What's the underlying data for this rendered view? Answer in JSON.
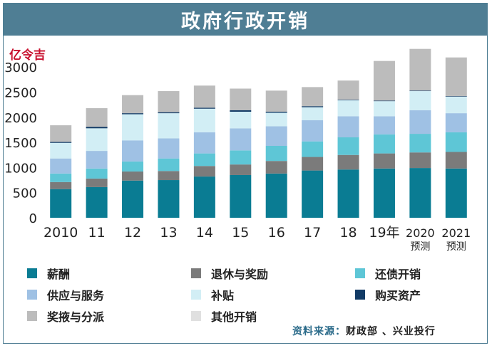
{
  "header": {
    "title": "政府行政开销"
  },
  "unit": "亿令吉",
  "source": {
    "label": "资料来源：",
    "value": "财政部 、兴业投行"
  },
  "colors": {
    "salaries": "#0a7c93",
    "pensions": "#7b7b7b",
    "debt": "#5ec6d6",
    "supplies": "#9fc1e4",
    "subsidies": "#d2eef5",
    "assets": "#123b66",
    "grants": "#bcbcbc",
    "others": "#e0e0e0"
  },
  "chart_data": {
    "type": "bar",
    "stacked": true,
    "categories": [
      "2010",
      "11",
      "12",
      "13",
      "14",
      "15",
      "16",
      "17",
      "18",
      "19年",
      "2020\n预测",
      "2021\n预测"
    ],
    "ylim": [
      0,
      3200
    ],
    "yticks": [
      0,
      500,
      1000,
      1500,
      2000,
      2500,
      3000
    ],
    "grid": false,
    "legend_position": "bottom",
    "series": [
      {
        "key": "salaries",
        "name": "薪酬",
        "values": [
          570,
          610,
          740,
          750,
          820,
          850,
          880,
          940,
          960,
          980,
          990,
          980
        ]
      },
      {
        "key": "pensions",
        "name": "退休与奖励",
        "values": [
          140,
          170,
          180,
          180,
          210,
          210,
          250,
          270,
          290,
          300,
          310,
          330
        ]
      },
      {
        "key": "debt",
        "name": "还债开销",
        "values": [
          170,
          200,
          200,
          250,
          250,
          280,
          300,
          310,
          350,
          380,
          370,
          390
        ]
      },
      {
        "key": "supplies",
        "name": "供应与服务",
        "values": [
          300,
          350,
          420,
          400,
          420,
          440,
          390,
          420,
          420,
          360,
          470,
          380
        ]
      },
      {
        "key": "subsidies",
        "name": "补贴",
        "values": [
          310,
          450,
          520,
          500,
          470,
          330,
          270,
          260,
          320,
          300,
          380,
          330
        ]
      },
      {
        "key": "assets",
        "name": "购买资产",
        "values": [
          20,
          30,
          20,
          20,
          20,
          30,
          20,
          20,
          10,
          10,
          10,
          10
        ]
      },
      {
        "key": "grants",
        "name": "奖掖与分派",
        "values": [
          330,
          370,
          360,
          420,
          440,
          430,
          420,
          380,
          380,
          790,
          830,
          770
        ]
      },
      {
        "key": "others",
        "name": "其他开销",
        "values": [
          0,
          0,
          0,
          0,
          0,
          0,
          0,
          0,
          0,
          0,
          0,
          0
        ]
      }
    ]
  },
  "legend_order": [
    "salaries",
    "pensions",
    "debt",
    "supplies",
    "subsidies",
    "assets",
    "grants",
    "others"
  ]
}
